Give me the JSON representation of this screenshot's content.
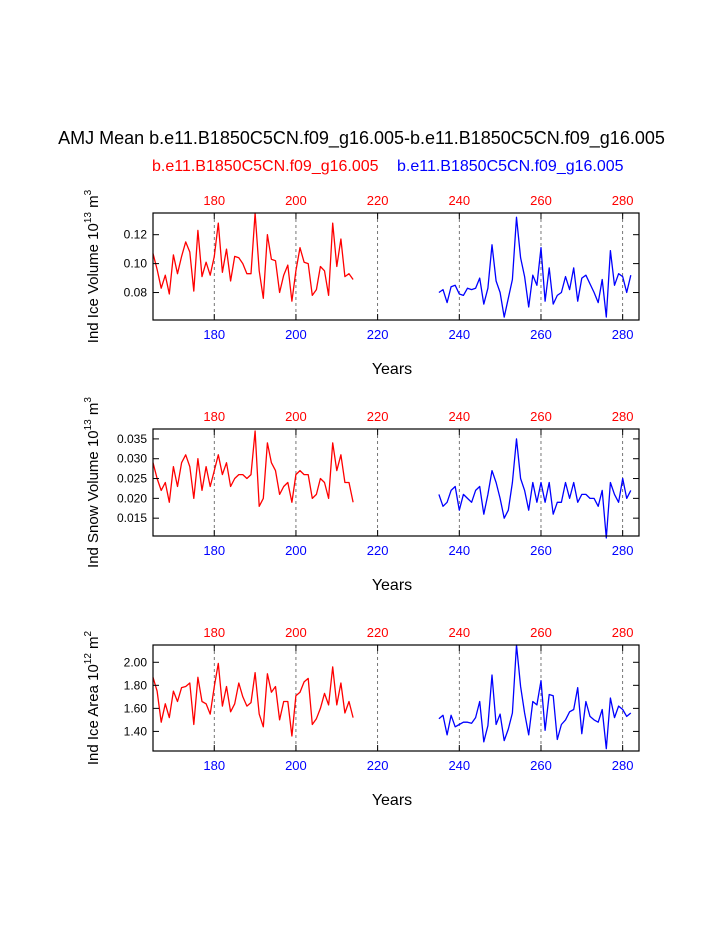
{
  "title": "AMJ Mean b.e11.B1850C5CN.f09_g16.005-b.e11.B1850C5CN.f09_g16.005",
  "subtitle_left": "b.e11.B1850C5CN.f09_g16.005",
  "subtitle_right": "b.e11.B1850C5CN.f09_g16.005",
  "colors": {
    "case1": "#ff0000",
    "case2": "#0000ff",
    "axis": "#000000"
  },
  "chart_data": [
    {
      "type": "line",
      "ylabel_main": "Ind Ice Volume 10",
      "ylabel_exp": "13",
      "ylabel_unit": " m",
      "ylabel_unit_exp": "3",
      "xlabel": "Years",
      "xlim": [
        165,
        284
      ],
      "ylim": [
        0.061,
        0.135
      ],
      "yticks": [
        0.08,
        0.1,
        0.12
      ],
      "ytick_labels": [
        "0.08",
        "0.10",
        "0.12"
      ],
      "xticks": [
        180,
        200,
        220,
        240,
        260,
        280
      ],
      "xtick_labels": [
        "180",
        "200",
        "220",
        "240",
        "260",
        "280"
      ],
      "series": [
        {
          "name": "b.e11.B1850C5CN.f09_g16.005",
          "color": "#ff0000",
          "x_start": 165,
          "values": [
            0.107,
            0.096,
            0.083,
            0.092,
            0.079,
            0.106,
            0.093,
            0.105,
            0.115,
            0.108,
            0.081,
            0.123,
            0.091,
            0.101,
            0.092,
            0.105,
            0.128,
            0.094,
            0.11,
            0.088,
            0.105,
            0.104,
            0.1,
            0.093,
            0.093,
            0.135,
            0.095,
            0.076,
            0.12,
            0.103,
            0.102,
            0.08,
            0.092,
            0.099,
            0.074,
            0.095,
            0.111,
            0.101,
            0.1,
            0.078,
            0.082,
            0.098,
            0.095,
            0.078,
            0.128,
            0.098,
            0.117,
            0.091,
            0.093,
            0.089
          ]
        },
        {
          "name": "b.e11.B1850C5CN.f09_g16.005",
          "color": "#0000ff",
          "x_start": 235,
          "values": [
            0.08,
            0.082,
            0.073,
            0.084,
            0.085,
            0.079,
            0.078,
            0.083,
            0.082,
            0.083,
            0.09,
            0.072,
            0.083,
            0.113,
            0.088,
            0.08,
            0.063,
            0.076,
            0.089,
            0.132,
            0.104,
            0.091,
            0.07,
            0.092,
            0.085,
            0.111,
            0.074,
            0.097,
            0.072,
            0.078,
            0.08,
            0.091,
            0.082,
            0.097,
            0.074,
            0.09,
            0.092,
            0.086,
            0.08,
            0.073,
            0.089,
            0.063,
            0.109,
            0.085,
            0.093,
            0.091,
            0.08,
            0.092
          ]
        }
      ]
    },
    {
      "type": "line",
      "ylabel_main": "Ind Snow Volume 10",
      "ylabel_exp": "13",
      "ylabel_unit": " m",
      "ylabel_unit_exp": "3",
      "xlabel": "Years",
      "xlim": [
        165,
        284
      ],
      "ylim": [
        0.0105,
        0.0375
      ],
      "yticks": [
        0.015,
        0.02,
        0.025,
        0.03,
        0.035
      ],
      "ytick_labels": [
        "0.015",
        "0.020",
        "0.025",
        "0.030",
        "0.035"
      ],
      "xticks": [
        180,
        200,
        220,
        240,
        260,
        280
      ],
      "xtick_labels": [
        "180",
        "200",
        "220",
        "240",
        "260",
        "280"
      ],
      "series": [
        {
          "name": "b.e11.B1850C5CN.f09_g16.005",
          "color": "#ff0000",
          "x_start": 165,
          "values": [
            0.029,
            0.025,
            0.022,
            0.024,
            0.019,
            0.028,
            0.023,
            0.029,
            0.031,
            0.028,
            0.02,
            0.03,
            0.022,
            0.028,
            0.023,
            0.027,
            0.031,
            0.026,
            0.029,
            0.023,
            0.025,
            0.026,
            0.026,
            0.025,
            0.026,
            0.037,
            0.018,
            0.02,
            0.034,
            0.029,
            0.027,
            0.021,
            0.023,
            0.024,
            0.019,
            0.026,
            0.027,
            0.026,
            0.026,
            0.02,
            0.021,
            0.025,
            0.024,
            0.02,
            0.034,
            0.027,
            0.031,
            0.024,
            0.024,
            0.019
          ]
        },
        {
          "name": "b.e11.B1850C5CN.f09_g16.005",
          "color": "#0000ff",
          "x_start": 235,
          "values": [
            0.021,
            0.018,
            0.019,
            0.022,
            0.023,
            0.017,
            0.021,
            0.02,
            0.019,
            0.022,
            0.023,
            0.016,
            0.021,
            0.027,
            0.024,
            0.02,
            0.015,
            0.017,
            0.024,
            0.035,
            0.025,
            0.022,
            0.017,
            0.024,
            0.019,
            0.024,
            0.019,
            0.024,
            0.016,
            0.019,
            0.019,
            0.024,
            0.02,
            0.024,
            0.019,
            0.021,
            0.021,
            0.02,
            0.02,
            0.018,
            0.022,
            0.01,
            0.024,
            0.021,
            0.019,
            0.025,
            0.02,
            0.022
          ]
        }
      ]
    },
    {
      "type": "line",
      "ylabel_main": "Ind Ice Area 10",
      "ylabel_exp": "12",
      "ylabel_unit": " m",
      "ylabel_unit_exp": "2",
      "xlabel": "Years",
      "xlim": [
        165,
        284
      ],
      "ylim": [
        1.23,
        2.15
      ],
      "yticks": [
        1.4,
        1.6,
        1.8,
        2.0
      ],
      "ytick_labels": [
        "1.40",
        "1.60",
        "1.80",
        "2.00"
      ],
      "xticks": [
        180,
        200,
        220,
        240,
        260,
        280
      ],
      "xtick_labels": [
        "180",
        "200",
        "220",
        "240",
        "260",
        "280"
      ],
      "series": [
        {
          "name": "b.e11.B1850C5CN.f09_g16.005",
          "color": "#ff0000",
          "x_start": 165,
          "values": [
            1.87,
            1.75,
            1.48,
            1.64,
            1.52,
            1.75,
            1.66,
            1.78,
            1.79,
            1.82,
            1.46,
            1.87,
            1.66,
            1.64,
            1.55,
            1.79,
            1.99,
            1.62,
            1.79,
            1.57,
            1.64,
            1.82,
            1.7,
            1.62,
            1.65,
            1.91,
            1.55,
            1.44,
            1.9,
            1.74,
            1.79,
            1.5,
            1.66,
            1.66,
            1.36,
            1.71,
            1.74,
            1.83,
            1.86,
            1.46,
            1.51,
            1.6,
            1.73,
            1.63,
            1.96,
            1.63,
            1.82,
            1.56,
            1.66,
            1.52
          ]
        },
        {
          "name": "b.e11.B1850C5CN.f09_g16.005",
          "color": "#0000ff",
          "x_start": 235,
          "values": [
            1.51,
            1.54,
            1.37,
            1.54,
            1.44,
            1.46,
            1.48,
            1.48,
            1.47,
            1.52,
            1.66,
            1.31,
            1.45,
            1.89,
            1.46,
            1.55,
            1.32,
            1.42,
            1.56,
            2.15,
            1.79,
            1.56,
            1.37,
            1.66,
            1.63,
            1.84,
            1.41,
            1.72,
            1.71,
            1.33,
            1.46,
            1.5,
            1.57,
            1.59,
            1.78,
            1.38,
            1.66,
            1.53,
            1.5,
            1.48,
            1.59,
            1.25,
            1.69,
            1.52,
            1.62,
            1.59,
            1.53,
            1.56
          ]
        }
      ]
    }
  ]
}
